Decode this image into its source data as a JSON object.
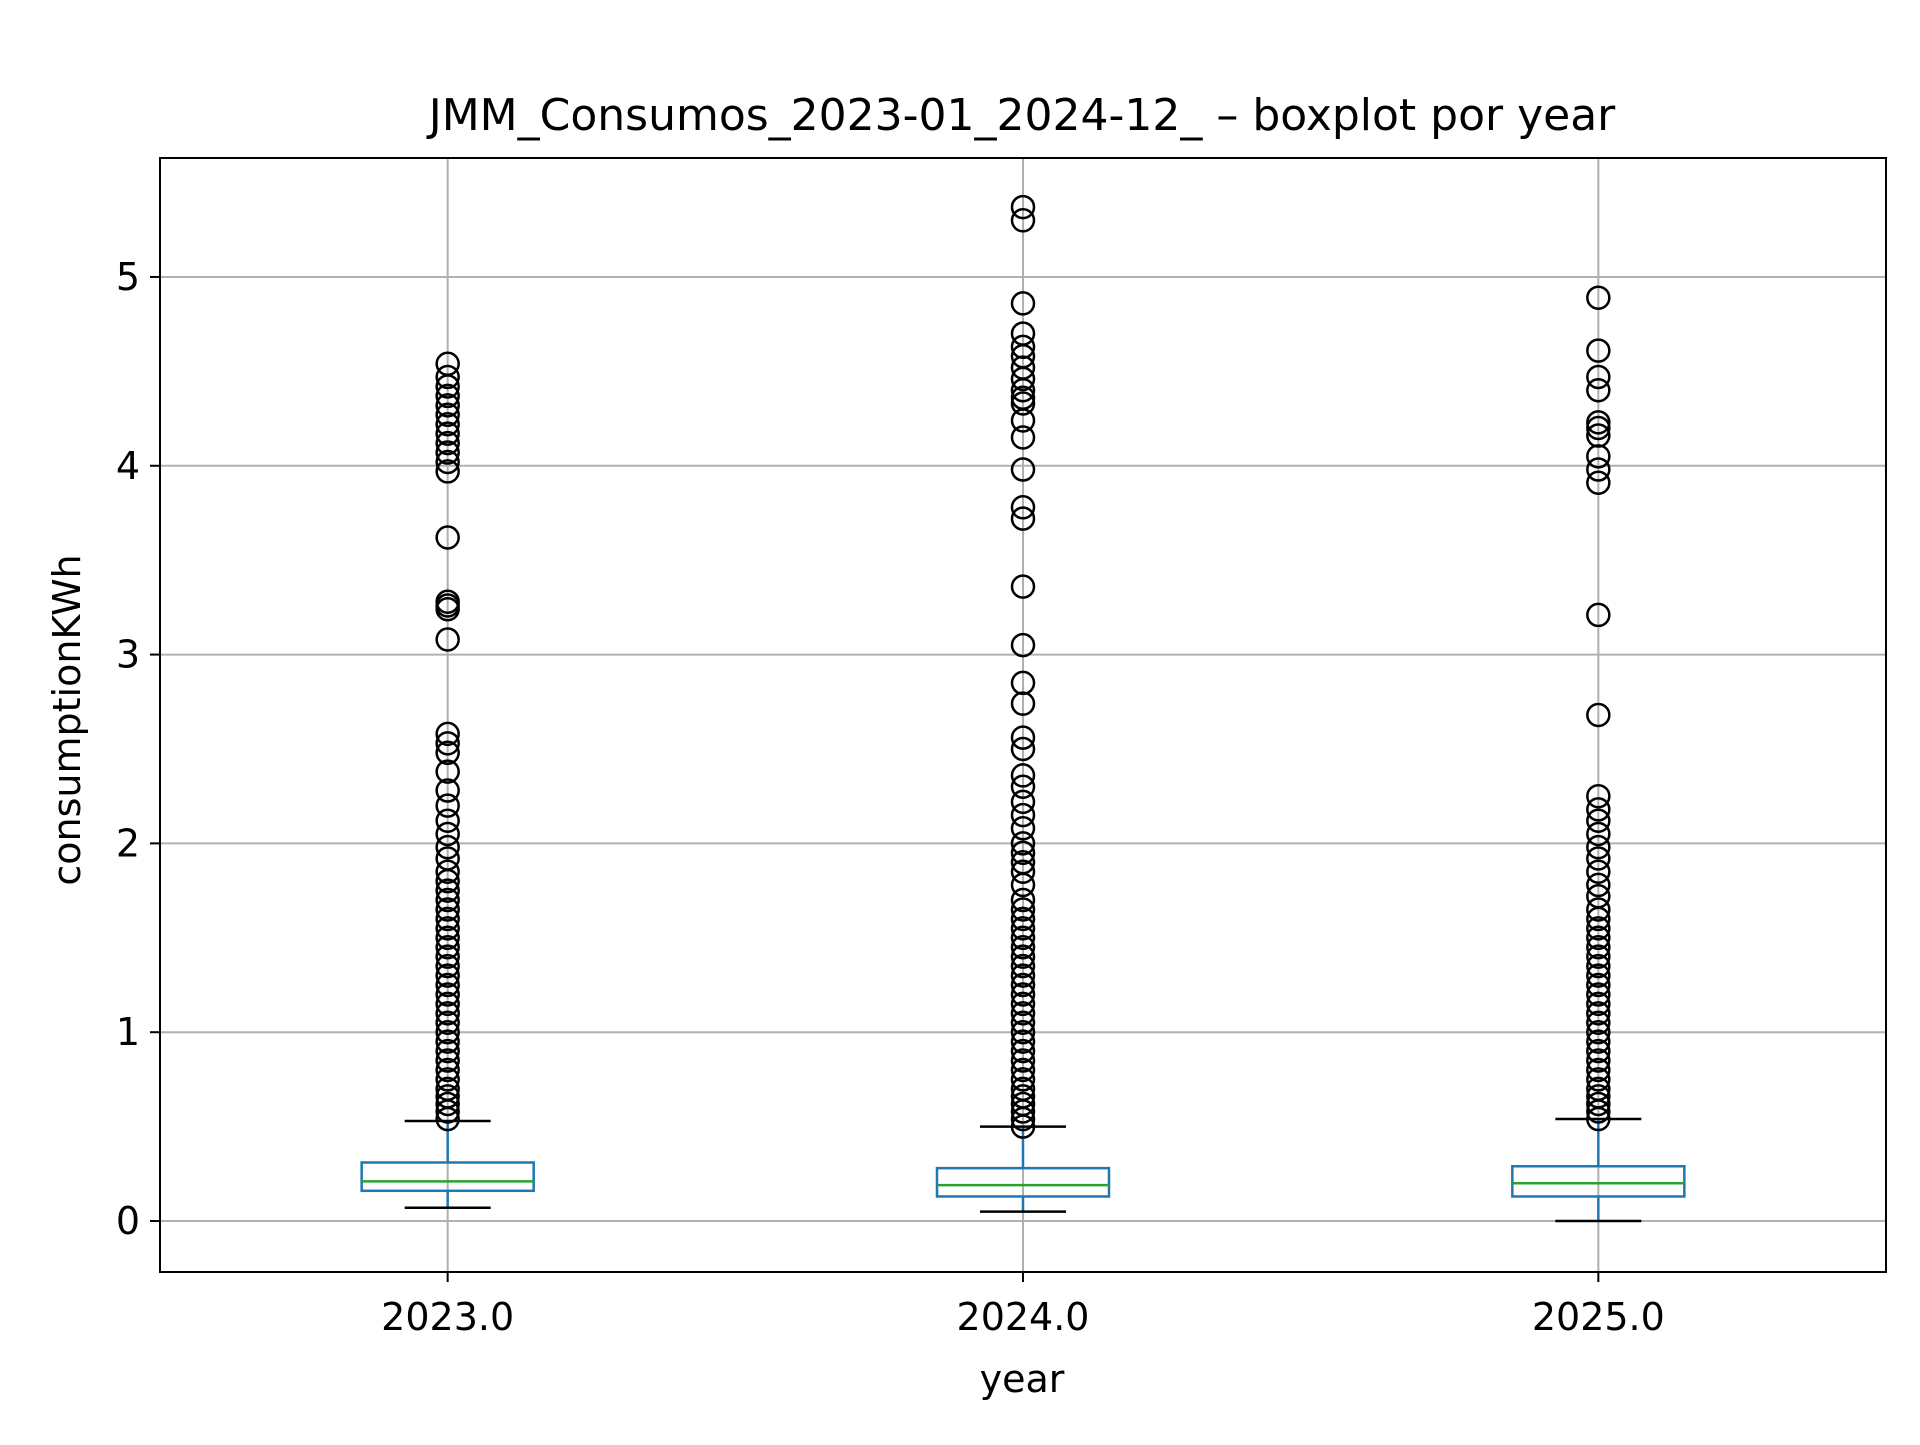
{
  "chart_data": {
    "type": "boxplot",
    "title": "JMM_Consumos_2023-01_2024-12_ – boxplot por year",
    "xlabel": "year",
    "ylabel": "consumptionKWh",
    "categories": [
      "2023.0",
      "2024.0",
      "2025.0"
    ],
    "ylim": [
      -0.27,
      5.63
    ],
    "yticks": [
      0,
      1,
      2,
      3,
      4,
      5
    ],
    "grid": true,
    "colors": {
      "box": "#1f77b4",
      "median": "#2ca02c",
      "whisker": "#1f77b4",
      "cap": "#000000",
      "flier": "#000000",
      "grid": "#b0b0b0",
      "axes": "#000000"
    },
    "boxes": [
      {
        "category": "2023.0",
        "whisker_low": 0.07,
        "q1": 0.16,
        "median": 0.21,
        "q3": 0.31,
        "whisker_high": 0.53,
        "fliers": [
          0.54,
          0.58,
          0.62,
          0.66,
          0.7,
          0.75,
          0.8,
          0.85,
          0.9,
          0.95,
          1.0,
          1.05,
          1.1,
          1.15,
          1.2,
          1.25,
          1.3,
          1.35,
          1.4,
          1.45,
          1.5,
          1.55,
          1.6,
          1.65,
          1.7,
          1.75,
          1.8,
          1.85,
          1.92,
          1.98,
          2.05,
          2.12,
          2.2,
          2.28,
          2.38,
          2.48,
          2.53,
          2.58,
          3.08,
          3.24,
          3.26,
          3.28,
          3.62,
          3.97,
          4.02,
          4.07,
          4.12,
          4.17,
          4.22,
          4.27,
          4.32,
          4.37,
          4.42,
          4.47,
          4.54
        ]
      },
      {
        "category": "2024.0",
        "whisker_low": 0.05,
        "q1": 0.13,
        "median": 0.19,
        "q3": 0.28,
        "whisker_high": 0.5,
        "fliers": [
          0.5,
          0.54,
          0.58,
          0.62,
          0.66,
          0.7,
          0.75,
          0.8,
          0.85,
          0.9,
          0.95,
          1.0,
          1.05,
          1.1,
          1.15,
          1.2,
          1.25,
          1.3,
          1.35,
          1.4,
          1.45,
          1.5,
          1.55,
          1.6,
          1.65,
          1.7,
          1.78,
          1.85,
          1.9,
          1.95,
          2.0,
          2.08,
          2.15,
          2.22,
          2.3,
          2.36,
          2.5,
          2.56,
          2.74,
          2.85,
          3.05,
          3.36,
          3.72,
          3.78,
          3.98,
          4.15,
          4.24,
          4.33,
          4.36,
          4.4,
          4.46,
          4.52,
          4.58,
          4.63,
          4.7,
          4.86,
          5.3,
          5.37
        ]
      },
      {
        "category": "2025.0",
        "whisker_low": 0.0,
        "q1": 0.13,
        "median": 0.2,
        "q3": 0.29,
        "whisker_high": 0.54,
        "fliers": [
          0.54,
          0.58,
          0.62,
          0.66,
          0.7,
          0.75,
          0.8,
          0.85,
          0.9,
          0.95,
          1.0,
          1.05,
          1.1,
          1.15,
          1.2,
          1.25,
          1.3,
          1.35,
          1.4,
          1.45,
          1.5,
          1.55,
          1.6,
          1.65,
          1.72,
          1.78,
          1.85,
          1.92,
          1.98,
          2.05,
          2.12,
          2.18,
          2.25,
          2.68,
          3.21,
          3.91,
          3.98,
          4.05,
          4.16,
          4.2,
          4.23,
          4.4,
          4.47,
          4.61,
          4.89
        ]
      }
    ]
  }
}
